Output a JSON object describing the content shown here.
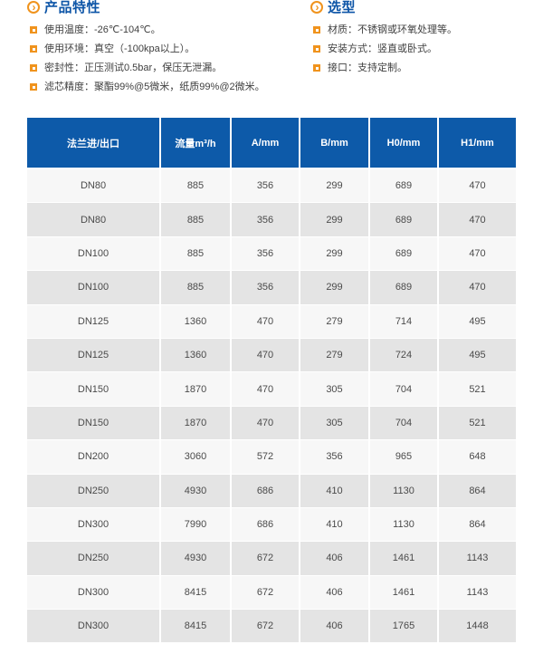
{
  "features": {
    "title": "产品特性",
    "items": [
      "使用温度：-26℃-104℃。",
      "使用环境：真空（-100kpa以上）。",
      "密封性：正压测试0.5bar，保压无泄漏。",
      "滤芯精度：聚酯99%@5微米，纸质99%@2微米。"
    ]
  },
  "selection": {
    "title": "选型",
    "items": [
      "材质：不锈钢或环氧处理等。",
      "安装方式：竖直或卧式。",
      "接口：支持定制。"
    ]
  },
  "spec_table": {
    "headers": [
      "法兰进/出口",
      "流量m³/h",
      "A/mm",
      "B/mm",
      "H0/mm",
      "H1/mm"
    ],
    "rows": [
      [
        "DN80",
        "885",
        "356",
        "299",
        "689",
        "470"
      ],
      [
        "DN80",
        "885",
        "356",
        "299",
        "689",
        "470"
      ],
      [
        "DN100",
        "885",
        "356",
        "299",
        "689",
        "470"
      ],
      [
        "DN100",
        "885",
        "356",
        "299",
        "689",
        "470"
      ],
      [
        "DN125",
        "1360",
        "470",
        "279",
        "714",
        "495"
      ],
      [
        "DN125",
        "1360",
        "470",
        "279",
        "724",
        "495"
      ],
      [
        "DN150",
        "1870",
        "470",
        "305",
        "704",
        "521"
      ],
      [
        "DN150",
        "1870",
        "470",
        "305",
        "704",
        "521"
      ],
      [
        "DN200",
        "3060",
        "572",
        "356",
        "965",
        "648"
      ],
      [
        "DN250",
        "4930",
        "686",
        "410",
        "1130",
        "864"
      ],
      [
        "DN300",
        "7990",
        "686",
        "410",
        "1130",
        "864"
      ],
      [
        "DN250",
        "4930",
        "672",
        "406",
        "1461",
        "1143"
      ],
      [
        "DN300",
        "8415",
        "672",
        "406",
        "1461",
        "1143"
      ],
      [
        "DN300",
        "8415",
        "672",
        "406",
        "1765",
        "1448"
      ]
    ]
  },
  "icons": {
    "section_arrow": "›"
  },
  "colors": {
    "header_bg": "#0d5aa9",
    "title_text": "#0d55a7",
    "accent_orange": "#f0931d",
    "row_light": "#f7f7f7",
    "row_dark": "#e4e4e4",
    "body_text": "#4b4b4b"
  }
}
